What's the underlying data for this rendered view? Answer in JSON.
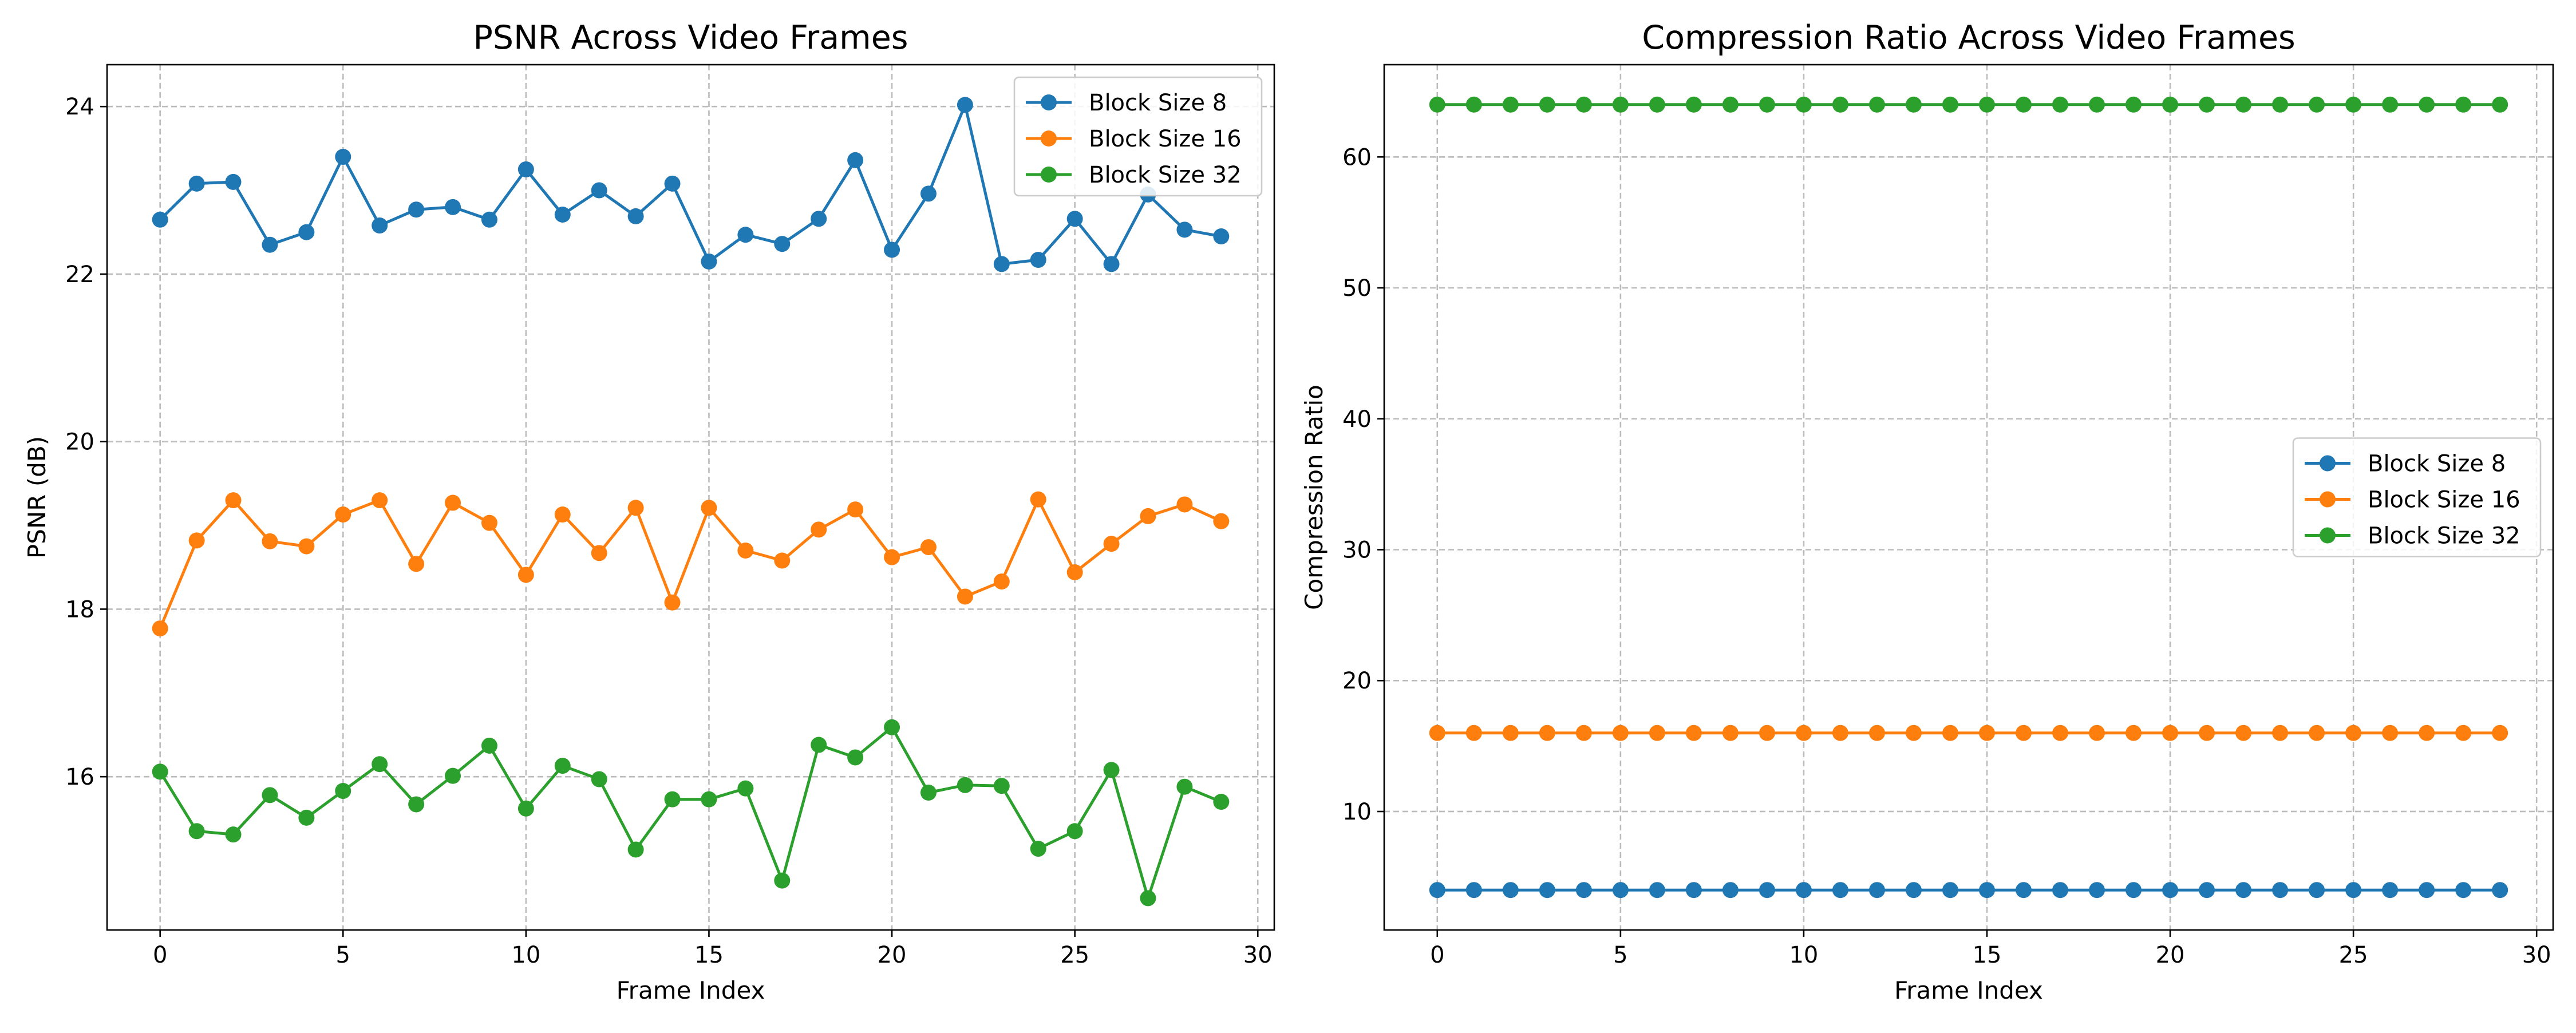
{
  "colors": {
    "block8": "#1f77b4",
    "block16": "#ff7f0e",
    "block32": "#2ca02c"
  },
  "chart_data": [
    {
      "type": "line",
      "title": "PSNR Across Video Frames",
      "xlabel": "Frame Index",
      "ylabel": "PSNR (dB)",
      "xlim": [
        -1.45,
        30.45
      ],
      "ylim": [
        14.17,
        24.5
      ],
      "xticks": [
        0,
        5,
        10,
        15,
        20,
        25,
        30
      ],
      "yticks": [
        16,
        18,
        20,
        22,
        24
      ],
      "grid": true,
      "legend_position": "top-right",
      "x": [
        0,
        1,
        2,
        3,
        4,
        5,
        6,
        7,
        8,
        9,
        10,
        11,
        12,
        13,
        14,
        15,
        16,
        17,
        18,
        19,
        20,
        21,
        22,
        23,
        24,
        25,
        26,
        27,
        28,
        29
      ],
      "series": [
        {
          "name": "Block Size 8",
          "color": "#1f77b4",
          "values": [
            22.65,
            23.08,
            23.1,
            22.35,
            22.5,
            23.4,
            22.58,
            22.77,
            22.8,
            22.65,
            23.25,
            22.71,
            23.0,
            22.69,
            23.08,
            22.15,
            22.47,
            22.36,
            22.66,
            23.36,
            22.29,
            22.96,
            24.02,
            22.12,
            22.17,
            22.66,
            22.12,
            22.95,
            22.53,
            22.45
          ]
        },
        {
          "name": "Block Size 16",
          "color": "#ff7f0e",
          "values": [
            17.77,
            18.82,
            19.3,
            18.81,
            18.75,
            19.13,
            19.3,
            18.54,
            19.27,
            19.03,
            18.41,
            19.13,
            18.67,
            19.21,
            18.08,
            19.21,
            18.7,
            18.58,
            18.95,
            19.19,
            18.62,
            18.74,
            18.15,
            18.33,
            19.31,
            18.44,
            18.78,
            19.11,
            19.25,
            19.05
          ]
        },
        {
          "name": "Block Size 32",
          "color": "#2ca02c",
          "values": [
            16.06,
            15.35,
            15.31,
            15.78,
            15.51,
            15.83,
            16.15,
            15.67,
            16.01,
            16.37,
            15.62,
            16.13,
            15.97,
            15.13,
            15.73,
            15.73,
            15.86,
            14.76,
            16.38,
            16.23,
            16.59,
            15.81,
            15.9,
            15.89,
            15.14,
            15.35,
            16.08,
            14.55,
            15.88,
            15.7
          ]
        }
      ]
    },
    {
      "type": "line",
      "title": "Compression Ratio Across Video Frames",
      "xlabel": "Frame Index",
      "ylabel": "Compression Ratio",
      "xlim": [
        -1.45,
        30.45
      ],
      "ylim": [
        0.95,
        67.05
      ],
      "xticks": [
        0,
        5,
        10,
        15,
        20,
        25,
        30
      ],
      "yticks": [
        10,
        20,
        30,
        40,
        50,
        60
      ],
      "grid": true,
      "legend_position": "center-right",
      "x": [
        0,
        1,
        2,
        3,
        4,
        5,
        6,
        7,
        8,
        9,
        10,
        11,
        12,
        13,
        14,
        15,
        16,
        17,
        18,
        19,
        20,
        21,
        22,
        23,
        24,
        25,
        26,
        27,
        28,
        29
      ],
      "series": [
        {
          "name": "Block Size 8",
          "color": "#1f77b4",
          "values": [
            4,
            4,
            4,
            4,
            4,
            4,
            4,
            4,
            4,
            4,
            4,
            4,
            4,
            4,
            4,
            4,
            4,
            4,
            4,
            4,
            4,
            4,
            4,
            4,
            4,
            4,
            4,
            4,
            4,
            4
          ]
        },
        {
          "name": "Block Size 16",
          "color": "#ff7f0e",
          "values": [
            16,
            16,
            16,
            16,
            16,
            16,
            16,
            16,
            16,
            16,
            16,
            16,
            16,
            16,
            16,
            16,
            16,
            16,
            16,
            16,
            16,
            16,
            16,
            16,
            16,
            16,
            16,
            16,
            16,
            16
          ]
        },
        {
          "name": "Block Size 32",
          "color": "#2ca02c",
          "values": [
            64,
            64,
            64,
            64,
            64,
            64,
            64,
            64,
            64,
            64,
            64,
            64,
            64,
            64,
            64,
            64,
            64,
            64,
            64,
            64,
            64,
            64,
            64,
            64,
            64,
            64,
            64,
            64,
            64,
            64
          ]
        }
      ]
    }
  ]
}
